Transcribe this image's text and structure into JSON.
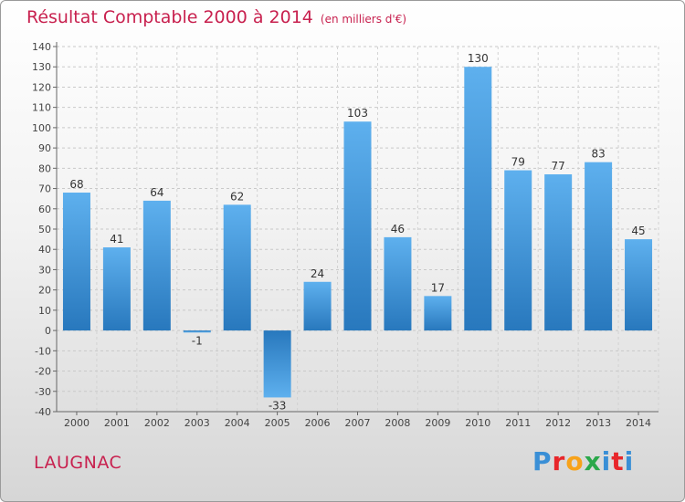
{
  "chart_data": {
    "type": "bar",
    "title": "Résultat Comptable 2000 à 2014",
    "subtitle": "(en milliers d'€)",
    "categories": [
      "2000",
      "2001",
      "2002",
      "2003",
      "2004",
      "2005",
      "2006",
      "2007",
      "2008",
      "2009",
      "2010",
      "2011",
      "2012",
      "2013",
      "2014"
    ],
    "values": [
      68,
      41,
      64,
      -1,
      62,
      -33,
      24,
      103,
      46,
      17,
      130,
      79,
      77,
      83,
      45
    ],
    "ylim": [
      -40,
      140
    ],
    "yticks": [
      -40,
      -30,
      -20,
      -10,
      0,
      10,
      20,
      30,
      40,
      50,
      60,
      70,
      80,
      90,
      100,
      110,
      120,
      130,
      140
    ],
    "grid": true,
    "xlabel": "",
    "ylabel": "",
    "bar_color": "#3a8fd6"
  },
  "footer": {
    "city": "LAUGNAC",
    "logo": [
      "P",
      "r",
      "o",
      "x",
      "i",
      "t",
      "i"
    ]
  },
  "colors": {
    "accent": "#c8214f"
  }
}
